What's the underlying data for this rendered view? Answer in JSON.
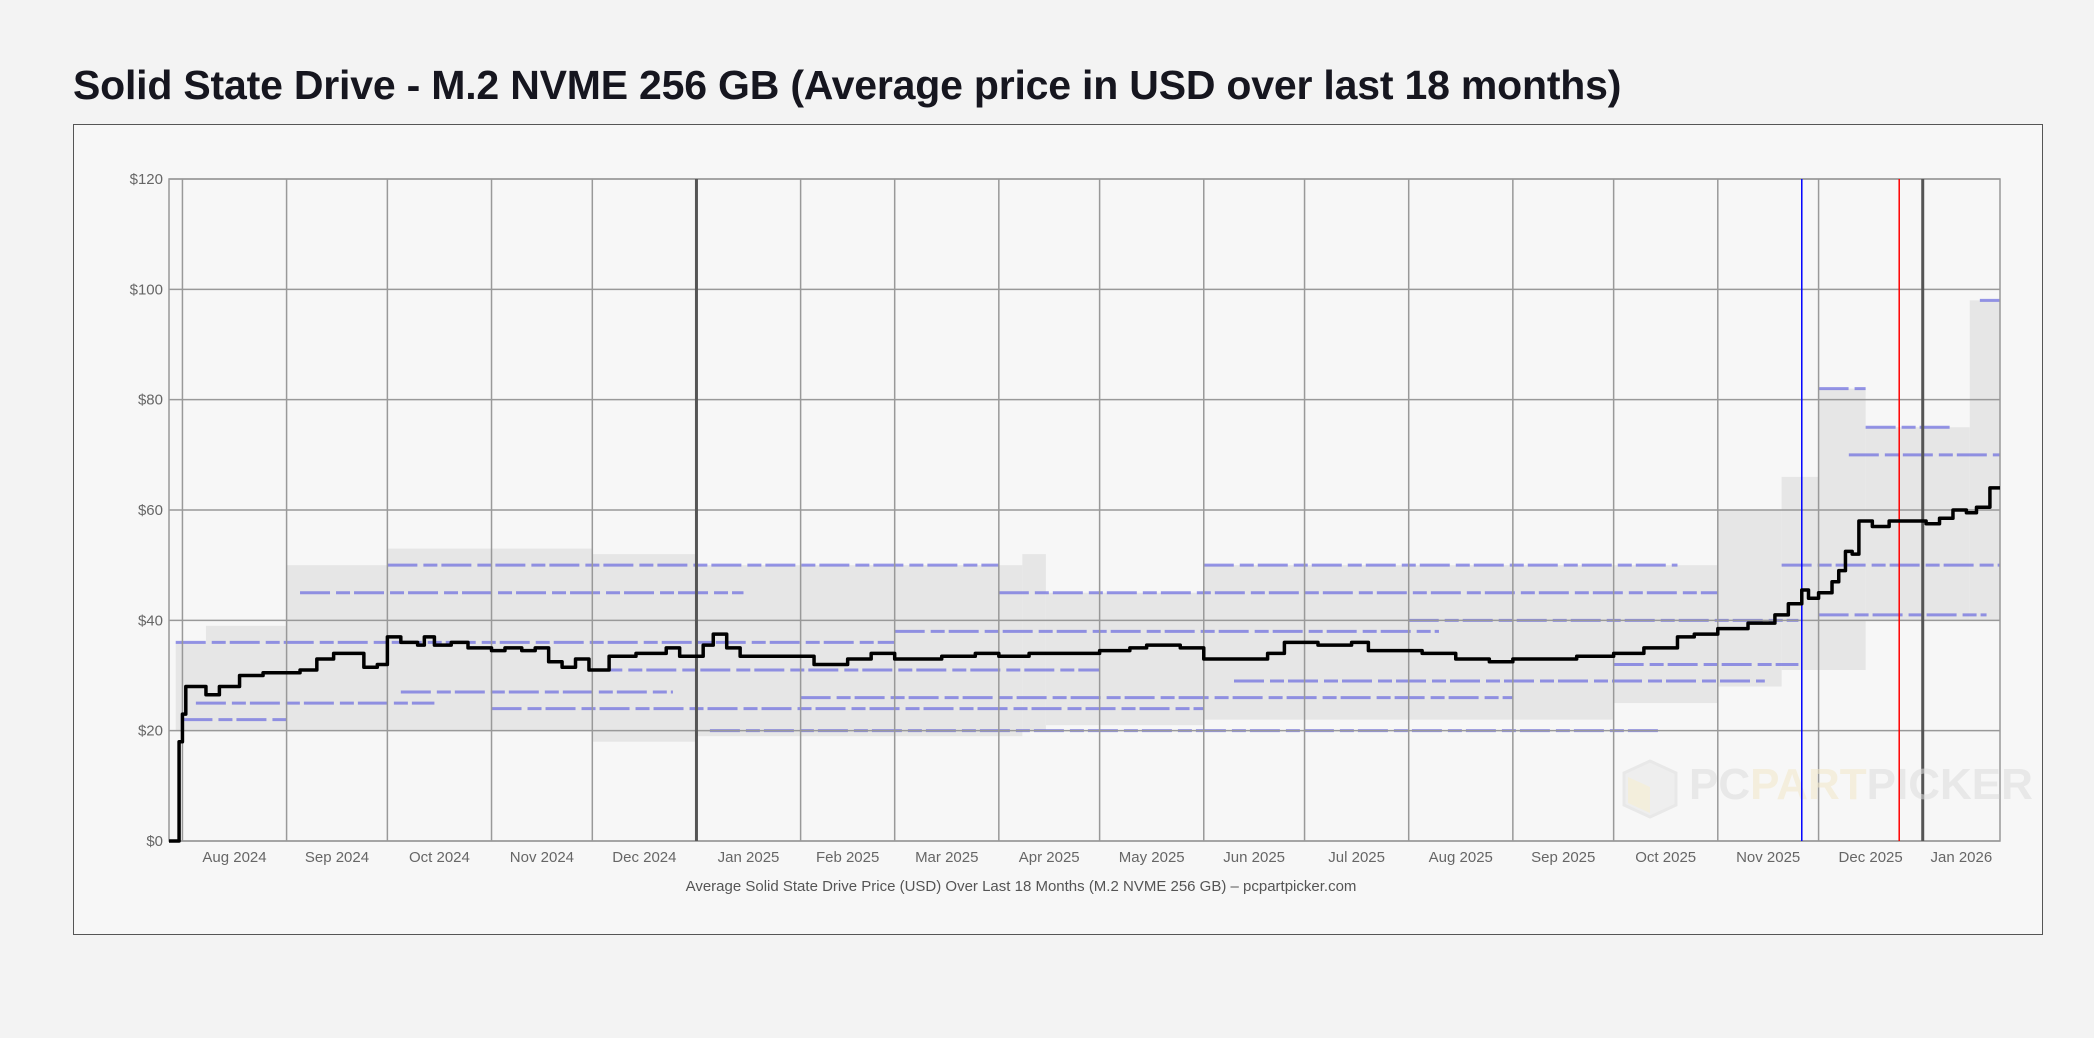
{
  "title": "Solid State Drive - M.2 NVME 256 GB (Average price in USD over last 18 months)",
  "chart_data": {
    "type": "line",
    "caption": "Average Solid State Drive Price (USD) Over Last 18 Months (M.2 NVME 256 GB) – pcpartpicker.com",
    "watermark": "PCPARTPICKER",
    "xlim": [
      "2024-07-28",
      "2026-01-24"
    ],
    "ylim": [
      0,
      120
    ],
    "y_ticks": [
      0,
      20,
      40,
      60,
      80,
      100,
      120
    ],
    "y_tick_labels": [
      "$0",
      "$20",
      "$40",
      "$60",
      "$80",
      "$100",
      "$120"
    ],
    "x_tick_labels": [
      {
        "date": "2024-08-01",
        "label": "Aug 2024"
      },
      {
        "date": "2024-09-01",
        "label": "Sep 2024"
      },
      {
        "date": "2024-10-01",
        "label": "Oct 2024"
      },
      {
        "date": "2024-11-01",
        "label": "Nov 2024"
      },
      {
        "date": "2024-12-01",
        "label": "Dec 2024"
      },
      {
        "date": "2025-01-01",
        "label": "Jan 2025"
      },
      {
        "date": "2025-02-01",
        "label": "Feb 2025"
      },
      {
        "date": "2025-03-01",
        "label": "Mar 2025"
      },
      {
        "date": "2025-04-01",
        "label": "Apr 2025"
      },
      {
        "date": "2025-05-01",
        "label": "May 2025"
      },
      {
        "date": "2025-06-01",
        "label": "Jun 2025"
      },
      {
        "date": "2025-07-01",
        "label": "Jul 2025"
      },
      {
        "date": "2025-08-01",
        "label": "Aug 2025"
      },
      {
        "date": "2025-09-01",
        "label": "Sep 2025"
      },
      {
        "date": "2025-10-01",
        "label": "Oct 2025"
      },
      {
        "date": "2025-11-01",
        "label": "Nov 2025"
      },
      {
        "date": "2025-12-01",
        "label": "Dec 2025"
      },
      {
        "date": "2026-01-01",
        "label": "Jan 2026"
      }
    ],
    "grid": true,
    "reference_lines": [
      {
        "date": "2025-11-26",
        "color": "#0000ff"
      },
      {
        "date": "2025-12-25",
        "color": "#ff0000"
      }
    ],
    "colors": {
      "average": "#000000",
      "range": "#e6e6e6",
      "retailer": "#6b6be0",
      "grid": "#999999",
      "year_line": "#555555"
    },
    "series": [
      {
        "role": "average",
        "points": [
          [
            "2024-07-28",
            0
          ],
          [
            "2024-07-30",
            0
          ],
          [
            "2024-07-31",
            18
          ],
          [
            "2024-08-01",
            23
          ],
          [
            "2024-08-02",
            28
          ],
          [
            "2024-08-05",
            28
          ],
          [
            "2024-08-08",
            26.5
          ],
          [
            "2024-08-12",
            28
          ],
          [
            "2024-08-18",
            30
          ],
          [
            "2024-08-25",
            30.5
          ],
          [
            "2024-09-01",
            30.5
          ],
          [
            "2024-09-05",
            31
          ],
          [
            "2024-09-10",
            33
          ],
          [
            "2024-09-15",
            34
          ],
          [
            "2024-09-20",
            34
          ],
          [
            "2024-09-24",
            31.5
          ],
          [
            "2024-09-28",
            32
          ],
          [
            "2024-10-01",
            37
          ],
          [
            "2024-10-05",
            36
          ],
          [
            "2024-10-10",
            35.5
          ],
          [
            "2024-10-12",
            37
          ],
          [
            "2024-10-15",
            35.5
          ],
          [
            "2024-10-20",
            36
          ],
          [
            "2024-10-25",
            35
          ],
          [
            "2024-11-01",
            34.5
          ],
          [
            "2024-11-05",
            35
          ],
          [
            "2024-11-10",
            34.5
          ],
          [
            "2024-11-14",
            35
          ],
          [
            "2024-11-18",
            32.5
          ],
          [
            "2024-11-22",
            31.5
          ],
          [
            "2024-11-26",
            33
          ],
          [
            "2024-11-30",
            31
          ],
          [
            "2024-12-03",
            31
          ],
          [
            "2024-12-06",
            33.5
          ],
          [
            "2024-12-10",
            33.5
          ],
          [
            "2024-12-14",
            34
          ],
          [
            "2024-12-20",
            34
          ],
          [
            "2024-12-23",
            35
          ],
          [
            "2024-12-27",
            33.5
          ],
          [
            "2025-01-01",
            33.5
          ],
          [
            "2025-01-03",
            35.5
          ],
          [
            "2025-01-06",
            37.5
          ],
          [
            "2025-01-10",
            35
          ],
          [
            "2025-01-14",
            33.5
          ],
          [
            "2025-01-25",
            33.5
          ],
          [
            "2025-02-01",
            33.5
          ],
          [
            "2025-02-05",
            32
          ],
          [
            "2025-02-15",
            33
          ],
          [
            "2025-02-22",
            34
          ],
          [
            "2025-03-01",
            33
          ],
          [
            "2025-03-15",
            33.5
          ],
          [
            "2025-03-25",
            34
          ],
          [
            "2025-04-01",
            33.5
          ],
          [
            "2025-04-10",
            34
          ],
          [
            "2025-04-20",
            34
          ],
          [
            "2025-05-01",
            34.5
          ],
          [
            "2025-05-10",
            35
          ],
          [
            "2025-05-15",
            35.5
          ],
          [
            "2025-05-25",
            35
          ],
          [
            "2025-06-01",
            33
          ],
          [
            "2025-06-10",
            33
          ],
          [
            "2025-06-20",
            34
          ],
          [
            "2025-06-25",
            36
          ],
          [
            "2025-07-05",
            35.5
          ],
          [
            "2025-07-15",
            36
          ],
          [
            "2025-07-20",
            34.5
          ],
          [
            "2025-07-28",
            34.5
          ],
          [
            "2025-08-05",
            34
          ],
          [
            "2025-08-15",
            33
          ],
          [
            "2025-08-25",
            32.5
          ],
          [
            "2025-09-01",
            33
          ],
          [
            "2025-09-10",
            33
          ],
          [
            "2025-09-20",
            33.5
          ],
          [
            "2025-10-01",
            34
          ],
          [
            "2025-10-10",
            35
          ],
          [
            "2025-10-20",
            37
          ],
          [
            "2025-10-25",
            37.5
          ],
          [
            "2025-11-01",
            38.5
          ],
          [
            "2025-11-10",
            39.5
          ],
          [
            "2025-11-18",
            41
          ],
          [
            "2025-11-22",
            43
          ],
          [
            "2025-11-26",
            45.5
          ],
          [
            "2025-11-28",
            44
          ],
          [
            "2025-12-01",
            45
          ],
          [
            "2025-12-05",
            47
          ],
          [
            "2025-12-07",
            49
          ],
          [
            "2025-12-09",
            52.5
          ],
          [
            "2025-12-11",
            52
          ],
          [
            "2025-12-13",
            58
          ],
          [
            "2025-12-17",
            57
          ],
          [
            "2025-12-22",
            58
          ],
          [
            "2025-12-28",
            58
          ],
          [
            "2026-01-02",
            57.5
          ],
          [
            "2026-01-06",
            58.5
          ],
          [
            "2026-01-10",
            60
          ],
          [
            "2026-01-14",
            59.5
          ],
          [
            "2026-01-17",
            60.5
          ],
          [
            "2026-01-21",
            64
          ],
          [
            "2026-01-24",
            64
          ]
        ]
      },
      {
        "role": "price-range",
        "bands": [
          [
            "2024-07-30",
            "2024-09-01",
            20,
            36
          ],
          [
            "2024-08-08",
            "2024-09-01",
            20,
            39
          ],
          [
            "2024-09-01",
            "2024-10-01",
            20,
            50
          ],
          [
            "2024-10-01",
            "2024-12-01",
            20,
            53
          ],
          [
            "2024-12-01",
            "2025-01-01",
            18,
            52
          ],
          [
            "2025-01-01",
            "2025-04-08",
            19,
            50
          ],
          [
            "2025-04-08",
            "2025-04-15",
            20,
            52
          ],
          [
            "2025-04-15",
            "2025-06-01",
            21,
            45
          ],
          [
            "2025-06-01",
            "2025-10-01",
            22,
            50
          ],
          [
            "2025-10-01",
            "2025-11-01",
            25,
            50
          ],
          [
            "2025-11-01",
            "2025-11-20",
            28,
            60
          ],
          [
            "2025-11-20",
            "2025-12-01",
            31,
            66
          ],
          [
            "2025-12-01",
            "2025-12-15",
            31,
            82
          ],
          [
            "2025-12-15",
            "2026-01-15",
            40,
            75
          ],
          [
            "2026-01-15",
            "2026-01-24",
            40,
            98
          ]
        ]
      },
      {
        "role": "retailer-prices",
        "segments": [
          [
            "2024-07-30",
            "2025-03-01",
            36
          ],
          [
            "2024-08-01",
            "2024-09-01",
            22
          ],
          [
            "2024-08-05",
            "2024-10-15",
            25
          ],
          [
            "2024-09-05",
            "2025-01-15",
            45
          ],
          [
            "2024-10-01",
            "2025-04-01",
            50
          ],
          [
            "2024-10-05",
            "2024-12-25",
            27
          ],
          [
            "2024-11-01",
            "2025-06-01",
            24
          ],
          [
            "2024-12-01",
            "2025-05-01",
            31
          ],
          [
            "2025-01-05",
            "2025-10-15",
            20
          ],
          [
            "2025-02-01",
            "2025-09-01",
            26
          ],
          [
            "2025-03-01",
            "2025-08-10",
            38
          ],
          [
            "2025-04-01",
            "2025-11-01",
            45
          ],
          [
            "2025-06-01",
            "2025-10-20",
            50
          ],
          [
            "2025-06-10",
            "2025-11-15",
            29
          ],
          [
            "2025-08-01",
            "2025-11-25",
            40
          ],
          [
            "2025-10-01",
            "2025-11-25",
            32
          ],
          [
            "2025-11-20",
            "2026-01-24",
            50
          ],
          [
            "2025-12-01",
            "2026-01-20",
            41
          ],
          [
            "2025-12-10",
            "2026-01-24",
            70
          ],
          [
            "2025-12-15",
            "2026-01-10",
            75
          ],
          [
            "2025-12-01",
            "2025-12-15",
            82
          ],
          [
            "2026-01-18",
            "2026-01-24",
            98
          ]
        ]
      }
    ]
  }
}
